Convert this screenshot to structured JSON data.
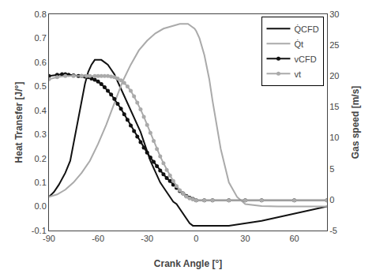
{
  "chart_data": {
    "type": "line",
    "xlabel": "Crank Angle [°]",
    "ylabel": "Heat Transfer [J/°]",
    "y2label": "Gas speed [m/s]",
    "xlim": [
      -90,
      80
    ],
    "xticks": [
      -90,
      -60,
      -30,
      0,
      30,
      60
    ],
    "ylim": [
      -0.1,
      0.8
    ],
    "yticks": [
      -0.1,
      {
        "value": 0.0,
        "label": "0.0"
      },
      0.1,
      0.2,
      0.3,
      0.4,
      0.5,
      0.6,
      0.7,
      0.8
    ],
    "y2lim": [
      -5,
      30
    ],
    "y2ticks": [
      -5,
      0,
      5,
      10,
      15,
      20,
      25,
      30
    ],
    "grid": false,
    "legend": "upper right",
    "series": [
      {
        "name": "Q̇CFD",
        "color": "#111111",
        "axis": "y",
        "x": [
          -90,
          -87,
          -84,
          -80,
          -77,
          -75,
          -72,
          -70,
          -68,
          -66,
          -64,
          -62,
          -60,
          -58,
          -56,
          -54,
          -52,
          -50,
          -48,
          -46,
          -44,
          -42,
          -40,
          -38,
          -36,
          -34,
          -32,
          -30,
          -28,
          -26,
          -24,
          -22,
          -20,
          -18,
          -16,
          -14,
          -12,
          -10,
          -8,
          -6,
          -4,
          -2,
          0,
          5,
          10,
          20,
          40,
          60,
          80
        ],
        "values": [
          0.04,
          0.06,
          0.09,
          0.14,
          0.19,
          0.26,
          0.36,
          0.44,
          0.51,
          0.56,
          0.59,
          0.61,
          0.61,
          0.61,
          0.6,
          0.59,
          0.57,
          0.55,
          0.52,
          0.49,
          0.46,
          0.43,
          0.4,
          0.37,
          0.34,
          0.31,
          0.27,
          0.23,
          0.19,
          0.16,
          0.13,
          0.1,
          0.08,
          0.06,
          0.04,
          0.02,
          0.01,
          -0.01,
          -0.03,
          -0.05,
          -0.07,
          -0.08,
          -0.08,
          -0.08,
          -0.08,
          -0.08,
          -0.06,
          -0.03,
          0.0
        ]
      },
      {
        "name": "Q̇t",
        "color": "#aaaaaa",
        "axis": "y",
        "x": [
          -90,
          -85,
          -80,
          -75,
          -70,
          -65,
          -60,
          -55,
          -50,
          -45,
          -40,
          -35,
          -30,
          -25,
          -20,
          -15,
          -10,
          -7,
          -5,
          -3,
          -1,
          0,
          2,
          5,
          8,
          10,
          15,
          20,
          25,
          30,
          35,
          40,
          50,
          60,
          70,
          80
        ],
        "values": [
          0.04,
          0.05,
          0.07,
          0.1,
          0.14,
          0.19,
          0.26,
          0.34,
          0.43,
          0.52,
          0.59,
          0.65,
          0.69,
          0.72,
          0.74,
          0.75,
          0.76,
          0.76,
          0.76,
          0.75,
          0.74,
          0.73,
          0.7,
          0.63,
          0.53,
          0.44,
          0.24,
          0.1,
          0.04,
          0.01,
          0.005,
          0.002,
          0.0,
          0.0,
          0.0,
          0.0
        ]
      },
      {
        "name": "vCFD",
        "color": "#111111",
        "axis": "y2",
        "marker": "circle",
        "x": [
          -90,
          -85,
          -82,
          -80,
          -78,
          -75,
          -72,
          -70,
          -68,
          -66,
          -64,
          -62,
          -60,
          -58,
          -56,
          -54,
          -52,
          -50,
          -48,
          -46,
          -44,
          -42,
          -40,
          -38,
          -36,
          -34,
          -32,
          -30,
          -28,
          -26,
          -24,
          -22,
          -20,
          -18,
          -16,
          -14,
          -12,
          -10,
          -8,
          -6,
          -4,
          -2,
          0,
          5,
          10,
          20,
          30,
          40,
          60,
          80
        ],
        "values": [
          20.0,
          20.2,
          20.3,
          20.3,
          20.2,
          20.1,
          20.0,
          20.0,
          19.9,
          19.8,
          19.6,
          19.4,
          19.1,
          18.7,
          18.2,
          17.6,
          17.0,
          16.3,
          15.5,
          14.7,
          13.8,
          12.9,
          12.0,
          11.1,
          10.2,
          9.3,
          8.4,
          7.6,
          6.8,
          6.1,
          5.4,
          4.7,
          4.1,
          3.5,
          3.0,
          2.4,
          1.9,
          1.4,
          1.0,
          0.6,
          0.3,
          0.1,
          -0.1,
          -0.1,
          -0.1,
          -0.1,
          -0.1,
          -0.1,
          -0.1,
          -0.1
        ]
      },
      {
        "name": "vt",
        "color": "#aaaaaa",
        "axis": "y2",
        "marker": "circle",
        "x": [
          -90,
          -85,
          -80,
          -75,
          -70,
          -67,
          -65,
          -62,
          -60,
          -58,
          -56,
          -54,
          -52,
          -50,
          -48,
          -46,
          -44,
          -42,
          -40,
          -38,
          -36,
          -34,
          -32,
          -30,
          -28,
          -26,
          -24,
          -22,
          -20,
          -18,
          -16,
          -14,
          -12,
          -10,
          -8,
          -6,
          -4,
          -2,
          0,
          5,
          10,
          20,
          30,
          40,
          60,
          80
        ],
        "values": [
          19.5,
          19.8,
          20.0,
          20.0,
          20.0,
          20.0,
          20.0,
          20.0,
          20.0,
          20.0,
          20.0,
          20.0,
          19.9,
          19.8,
          19.6,
          19.3,
          18.9,
          18.3,
          17.6,
          16.7,
          15.7,
          14.6,
          13.4,
          12.1,
          10.8,
          9.5,
          8.2,
          7.0,
          5.9,
          4.8,
          3.9,
          3.0,
          2.2,
          1.5,
          1.0,
          0.5,
          0.2,
          0.05,
          -0.1,
          -0.1,
          -0.1,
          -0.1,
          -0.1,
          -0.1,
          -0.1,
          -0.1
        ]
      }
    ]
  }
}
